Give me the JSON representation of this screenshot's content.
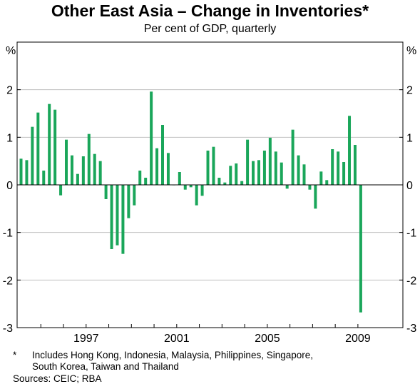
{
  "title": "Other East Asia – Change in Inventories*",
  "subtitle": "Per cent of GDP, quarterly",
  "footnote_marker": "*",
  "footnote_line1": "Includes Hong Kong, Indonesia, Malaysia, Philippines, Singapore,",
  "footnote_line2": "South Korea, Taiwan and Thailand",
  "sources": "Sources: CEIC; RBA",
  "colors": {
    "bar": "#1aa65a",
    "axis": "#000000",
    "grid": "#c0c0c0"
  },
  "chart_data": {
    "type": "bar",
    "left_unit": "%",
    "right_unit": "%",
    "ylim": [
      -3,
      3
    ],
    "yticks": [
      -3,
      -2,
      -1,
      0,
      1,
      2,
      3
    ],
    "ytick_labels": [
      "-3",
      "-2",
      "-1",
      "0",
      "1",
      "2",
      "3"
    ],
    "grid": true,
    "x_start": "1994 Q1",
    "x_tick_labels": [
      "1997",
      "2001",
      "2005",
      "2009"
    ],
    "x_tick_quarters": [
      12,
      28,
      44,
      60
    ],
    "values": [
      0.55,
      0.52,
      1.22,
      1.52,
      0.3,
      1.7,
      1.58,
      -0.22,
      0.95,
      0.62,
      0.23,
      0.6,
      1.07,
      0.65,
      0.5,
      -0.3,
      -1.35,
      -1.27,
      -1.45,
      -0.7,
      -0.43,
      0.3,
      0.15,
      1.96,
      0.77,
      1.26,
      0.67,
      0.0,
      0.27,
      -0.1,
      -0.05,
      -0.43,
      -0.23,
      0.72,
      0.8,
      0.15,
      0.05,
      0.4,
      0.45,
      0.08,
      0.95,
      0.5,
      0.52,
      0.72,
      0.99,
      0.7,
      0.47,
      -0.08,
      1.16,
      0.62,
      0.43,
      -0.1,
      -0.5,
      0.28,
      0.1,
      0.75,
      0.7,
      0.48,
      1.45,
      0.84,
      -2.68
    ]
  }
}
